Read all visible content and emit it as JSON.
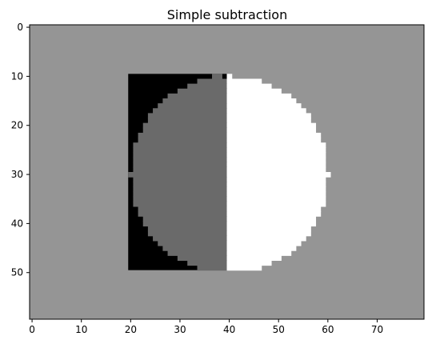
{
  "chart_data": {
    "type": "heatmap",
    "title": "Simple subtraction",
    "xlabel": "",
    "ylabel": "",
    "grid": false,
    "image_size": {
      "cols": 80,
      "rows": 60
    },
    "xlim": [
      -0.5,
      79.5
    ],
    "ylim": [
      59.5,
      -0.5
    ],
    "xticks": [
      0,
      10,
      20,
      30,
      40,
      50,
      60,
      70
    ],
    "yticks": [
      0,
      10,
      20,
      30,
      40,
      50
    ],
    "colormap": "gray",
    "levels": {
      "background": {
        "value": 0,
        "color": "#959595"
      },
      "black_region": {
        "value": -1,
        "color": "#000000"
      },
      "left_half_disk": {
        "value": -0.25,
        "color": "#6a6a6a"
      },
      "right_half_disk": {
        "value": 1,
        "color": "#ffffff"
      },
      "center_column": {
        "value": -0.25,
        "color": "#6a6a6a"
      }
    },
    "square": {
      "col_start": 20,
      "col_end": 39,
      "row_start": 10,
      "row_end": 49
    },
    "disk": {
      "center_col": 40,
      "center_row": 30,
      "radius": 20,
      "split_col": 40
    }
  }
}
